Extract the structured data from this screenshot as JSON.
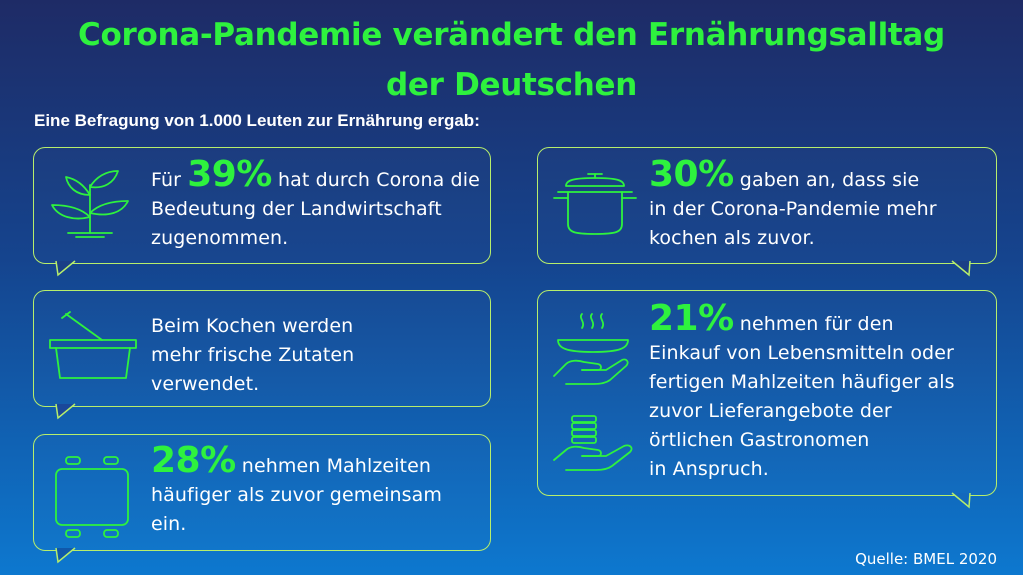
{
  "title": {
    "line1": "Corona-Pandemie verändert den Ernährungsalltag",
    "line2": "der Deutschen"
  },
  "subtitle": "Eine Befragung von 1.000 Leuten zur Ernährung ergab:",
  "cards": {
    "farming": {
      "icon": "plant-icon",
      "prefix": "Für ",
      "percent": "39%",
      "line1_rest": " hat durch Corona die",
      "line2": "Bedeutung der Landwirtschaft",
      "line3": "zugenommen."
    },
    "cooking": {
      "icon": "cooking-pot-icon",
      "percent": "30%",
      "line1_rest": " gaben an, dass sie",
      "line2": "in der Corona-Pandemie mehr",
      "line3": "kochen als zuvor."
    },
    "fresh": {
      "icon": "basket-icon",
      "line1": "Beim Kochen werden",
      "line2": "mehr frische Zutaten",
      "line3": "verwendet."
    },
    "delivery": {
      "icon_top": "hand-serving-dish-icon",
      "icon_bottom": "hand-money-icon",
      "percent": "21%",
      "line1_rest": " nehmen für den",
      "line2": "Einkauf von Lebensmitteln oder",
      "line3": "fertigen Mahlzeiten häufiger als",
      "line4": "zuvor Lieferangebote der",
      "line5": "örtlichen Gastronomen",
      "line6": "in Anspruch."
    },
    "together": {
      "icon": "dining-table-icon",
      "percent": "28%",
      "line1_rest": " nehmen Mahlzeiten",
      "line2": "häufiger als zuvor gemeinsam",
      "line3": "ein."
    }
  },
  "source": "Quelle: BMEL 2020",
  "colors": {
    "accent_green": "#2ef23e",
    "border": "#b7ee6b",
    "background_top": "#1e2b66",
    "background_bottom": "#0d78cf"
  }
}
